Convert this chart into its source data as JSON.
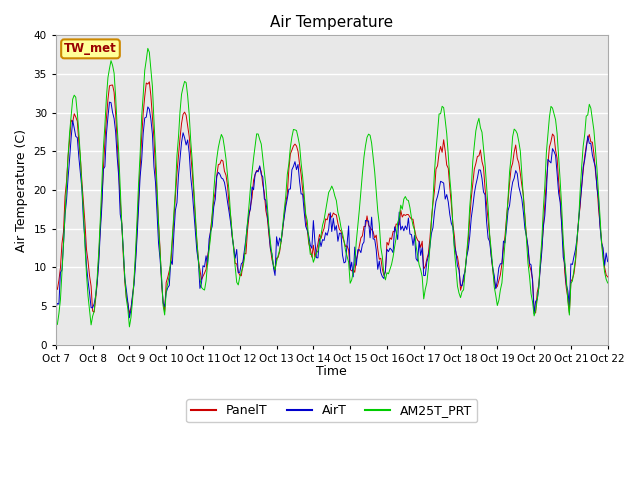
{
  "title": "Air Temperature",
  "ylabel": "Air Temperature (C)",
  "xlabel": "Time",
  "ylim": [
    0,
    40
  ],
  "xlim": [
    0,
    360
  ],
  "background_color": "#e8e8e8",
  "figure_color": "#ffffff",
  "legend_label": "TW_met",
  "series": [
    "PanelT",
    "AirT",
    "AM25T_PRT"
  ],
  "colors": [
    "#cc0000",
    "#0000cc",
    "#00cc00"
  ],
  "tick_labels": [
    "Oct 7",
    "Oct 8",
    " Oct 9",
    "Oct 10",
    "Oct 11",
    "Oct 12",
    "Oct 13",
    "Oct 14",
    "Oct 15",
    "Oct 16",
    "Oct 17",
    "Oct 18",
    "Oct 19",
    "Oct 20",
    "Oct 21",
    "Oct 22"
  ],
  "tick_positions": [
    0,
    24,
    48,
    72,
    96,
    120,
    144,
    168,
    192,
    216,
    240,
    264,
    288,
    312,
    336,
    360
  ],
  "grid_color": "#ffffff",
  "yticks": [
    0,
    5,
    10,
    15,
    20,
    25,
    30,
    35,
    40
  ]
}
